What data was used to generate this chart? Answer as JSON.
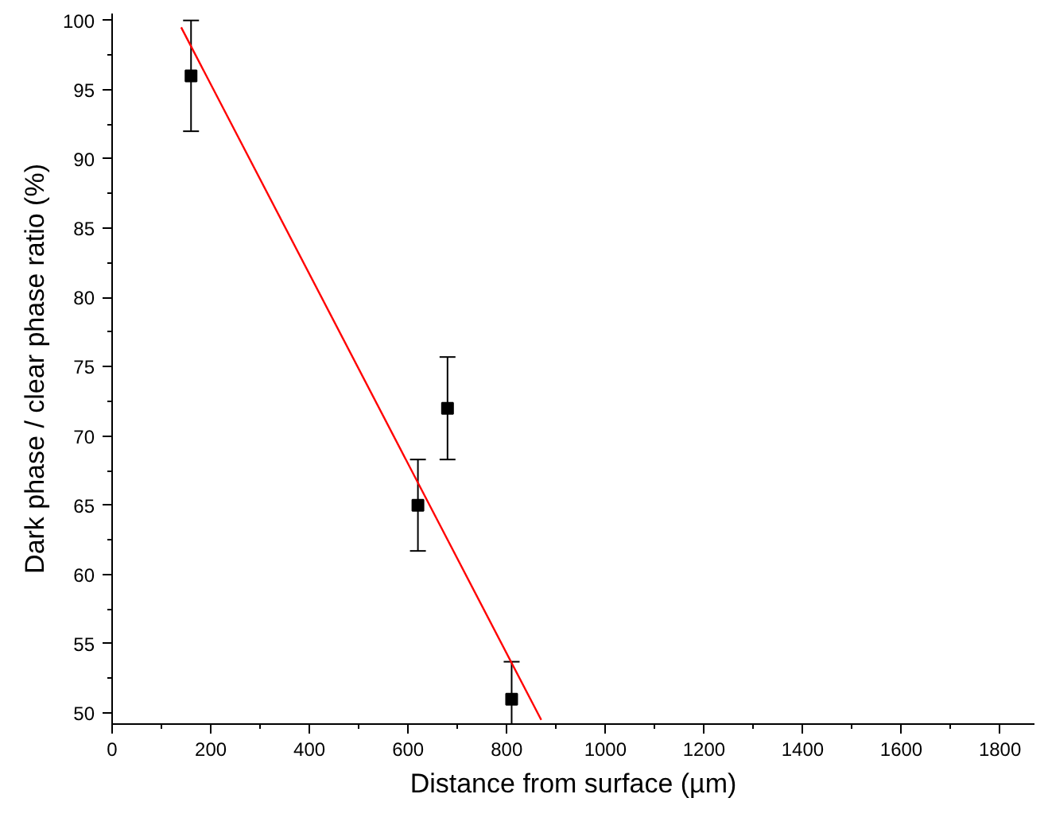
{
  "chart_data": {
    "type": "scatter",
    "xlabel": "Distance from surface (µm)",
    "ylabel": "Dark phase / clear phase ratio (%)",
    "xlim": [
      0,
      1870
    ],
    "ylim": [
      49.2,
      100.5
    ],
    "xticks": [
      0,
      200,
      400,
      600,
      800,
      1000,
      1200,
      1400,
      1600,
      1800
    ],
    "yticks": [
      50,
      55,
      60,
      65,
      70,
      75,
      80,
      85,
      90,
      95,
      100
    ],
    "grid": false,
    "series": [
      {
        "marker": "square",
        "color": "#000000",
        "x": [
          160,
          620,
          680,
          810
        ],
        "values": [
          96,
          65,
          72,
          51
        ],
        "errors": [
          [
            92,
            100
          ],
          [
            61.7,
            68.3
          ],
          [
            68.3,
            75.7
          ],
          [
            49.2,
            53.7
          ]
        ]
      },
      {
        "type": "line",
        "color": "#ff0000",
        "line_style": "solid",
        "x": [
          140,
          870
        ],
        "values": [
          99.5,
          49.5
        ]
      }
    ]
  }
}
